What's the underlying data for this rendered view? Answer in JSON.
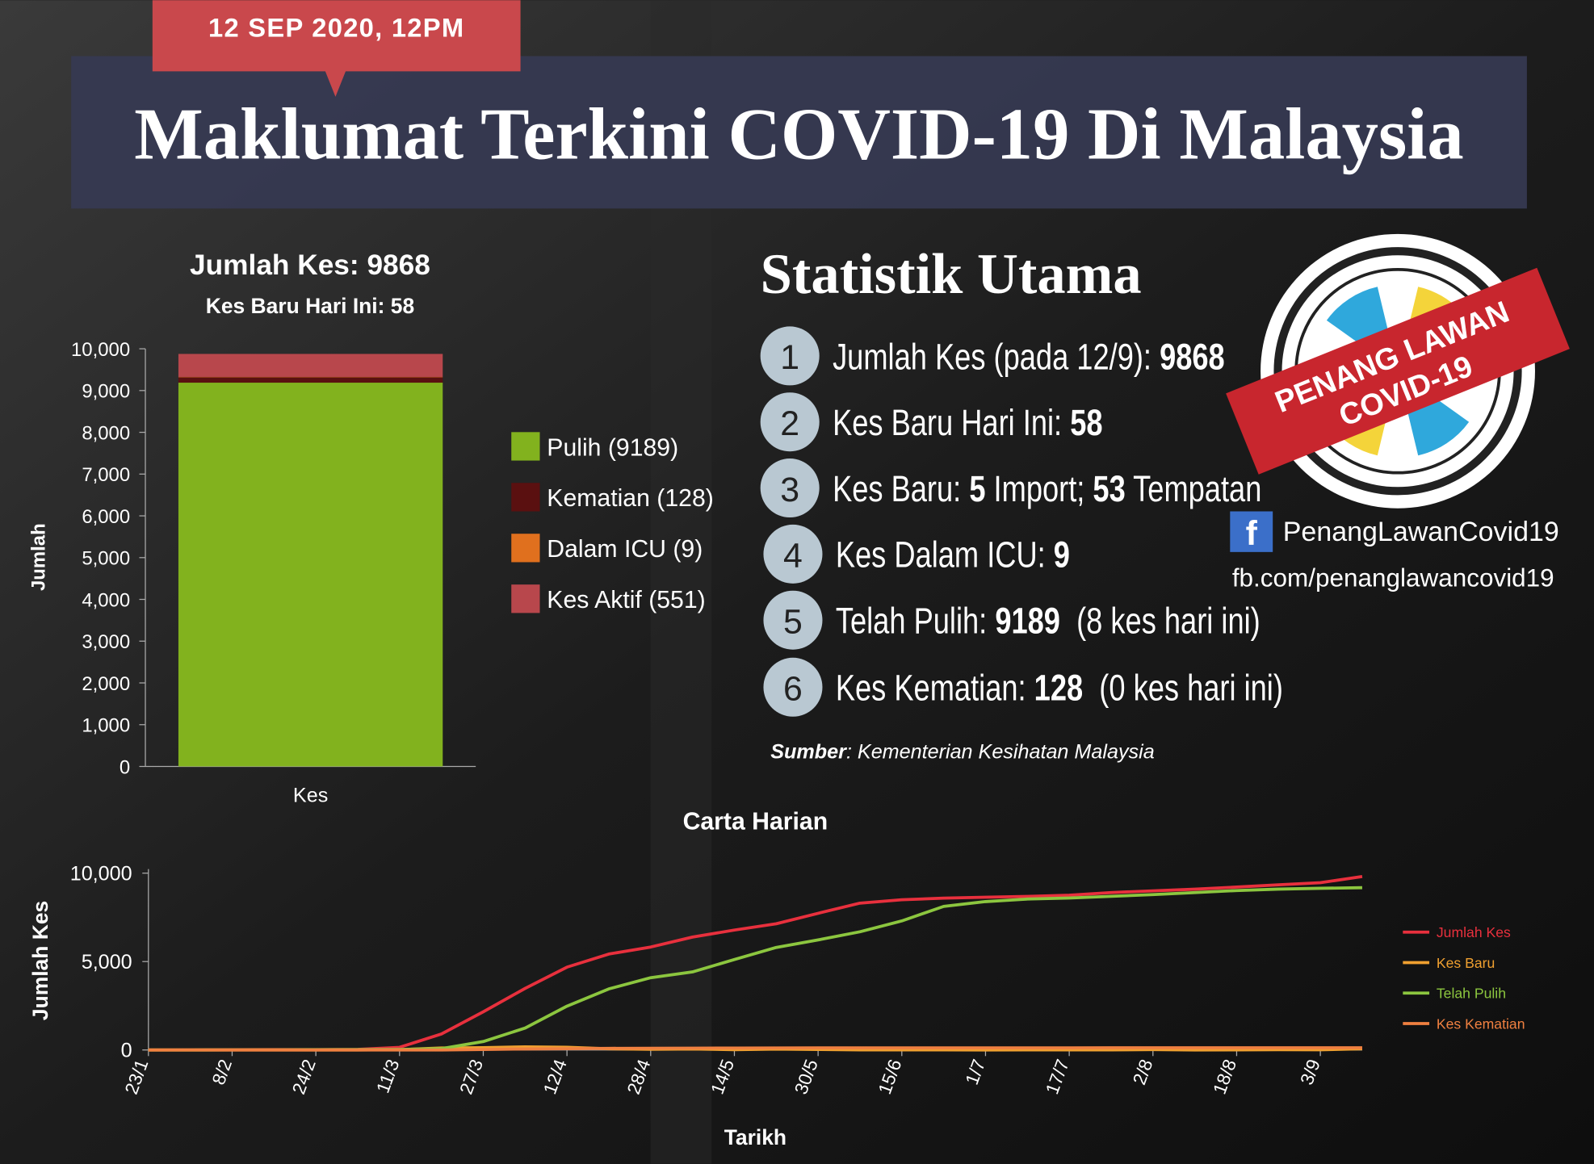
{
  "header": {
    "date": "12 SEP 2020, 12PM",
    "title": "Maklumat Terkini COVID-19 Di Malaysia"
  },
  "stats": {
    "title": "Statistik Utama",
    "items": [
      {
        "number": "1",
        "segments": [
          {
            "text": "Jumlah Kes (pada 12/9): ",
            "bold": false
          },
          {
            "text": "9868",
            "bold": true
          }
        ]
      },
      {
        "number": "2",
        "segments": [
          {
            "text": "Kes Baru Hari Ini: ",
            "bold": false
          },
          {
            "text": "58",
            "bold": true
          }
        ]
      },
      {
        "number": "3",
        "segments": [
          {
            "text": "Kes Baru: ",
            "bold": false
          },
          {
            "text": "5",
            "bold": true
          },
          {
            "text": " Import; ",
            "bold": false
          },
          {
            "text": "53",
            "bold": true
          },
          {
            "text": " Tempatan",
            "bold": false
          }
        ]
      },
      {
        "number": "4",
        "segments": [
          {
            "text": "Kes Dalam ICU: ",
            "bold": false
          },
          {
            "text": "9",
            "bold": true
          }
        ]
      },
      {
        "number": "5",
        "segments": [
          {
            "text": "Telah Pulih: ",
            "bold": false
          },
          {
            "text": "9189",
            "bold": true
          },
          {
            "text": "  (8 kes hari ini)",
            "bold": false
          }
        ]
      },
      {
        "number": "6",
        "segments": [
          {
            "text": "Kes Kematian: ",
            "bold": false
          },
          {
            "text": "128",
            "bold": true
          },
          {
            "text": "  (0 kes hari ini)",
            "bold": false
          }
        ]
      }
    ],
    "source_label": "Sumber",
    "source_text": ": Kementerian Kesihatan Malaysia"
  },
  "badge": {
    "line1": "PENANG LAWAN",
    "line2": "COVID-19"
  },
  "social": {
    "icon": "f",
    "name": "PenangLawanCovid19",
    "url": "fb.com/penanglawancovid19"
  },
  "chart_data": [
    {
      "type": "stacked-bar",
      "title": "Jumlah Kes: 9868",
      "subtitle": "Kes Baru Hari Ini: 58",
      "ylabel": "Jumlah",
      "categories": [
        "Kes"
      ],
      "series": [
        {
          "name": "Pulih (9189)",
          "color": "#82b21e",
          "values": [
            9189
          ]
        },
        {
          "name": "Kematian (128)",
          "color": "#5a1010",
          "values": [
            128
          ]
        },
        {
          "name": "Dalam ICU (9)",
          "color": "#e0701e",
          "values": [
            9
          ]
        },
        {
          "name": "Kes Aktif (551)",
          "color": "#b8474c",
          "values": [
            551
          ]
        }
      ],
      "ylim": [
        0,
        10000
      ],
      "yticks": [
        0,
        {
          "value": 1000,
          "label": "1,000"
        },
        {
          "value": 2000,
          "label": "2,000"
        },
        {
          "value": 3000,
          "label": "3,000"
        },
        {
          "value": 4000,
          "label": "4,000"
        },
        {
          "value": 5000,
          "label": "5,000"
        },
        {
          "value": 6000,
          "label": "6,000"
        },
        {
          "value": 7000,
          "label": "7,000"
        },
        {
          "value": 8000,
          "label": "8,000"
        },
        {
          "value": 9000,
          "label": "9,000"
        },
        {
          "value": 10000,
          "label": "10,000"
        }
      ]
    },
    {
      "type": "line",
      "title": "Carta Harian",
      "xlabel": "Tarikh",
      "ylabel": "Jumlah Kes",
      "categories": [
        "23/1",
        null,
        "8/2",
        null,
        "24/2",
        null,
        "11/3",
        null,
        "27/3",
        null,
        "12/4",
        null,
        "28/4",
        null,
        "14/5",
        null,
        "30/5",
        null,
        "15/6",
        null,
        "1/7",
        null,
        "17/7",
        null,
        "2/8",
        null,
        "18/8",
        null,
        "3/9",
        null
      ],
      "series": [
        {
          "name": "Jumlah Kes",
          "color": "#e8303d",
          "values": [
            0,
            8,
            17,
            22,
            22,
            36,
            149,
            900,
            2161,
            3483,
            4683,
            5425,
            5820,
            6383,
            6779,
            7137,
            7732,
            8303,
            8494,
            8587,
            8640,
            8683,
            8755,
            8904,
            9002,
            9094,
            9212,
            9340,
            9459,
            9810
          ]
        },
        {
          "name": "Kes Baru",
          "color": "#f0a030",
          "values": [
            0,
            0,
            1,
            0,
            0,
            0,
            20,
            117,
            130,
            179,
            153,
            71,
            40,
            55,
            16,
            50,
            30,
            7,
            8,
            4,
            2,
            7,
            7,
            5,
            25,
            2,
            5,
            20,
            12,
            70
          ]
        },
        {
          "name": "Telah Pulih",
          "color": "#8cc63f",
          "values": [
            0,
            0,
            3,
            7,
            18,
            22,
            26,
            75,
            479,
            1241,
            2478,
            3452,
            4087,
            4413,
            5113,
            5796,
            6222,
            6684,
            7300,
            8118,
            8388,
            8532,
            8590,
            8690,
            8790,
            8902,
            9015,
            9099,
            9146,
            9181
          ]
        },
        {
          "name": "Kes Kematian",
          "color": "#f08040",
          "values": [
            0,
            0,
            0,
            0,
            0,
            0,
            0,
            2,
            26,
            57,
            77,
            93,
            98,
            105,
            112,
            115,
            121,
            121,
            121,
            121,
            121,
            122,
            122,
            124,
            125,
            125,
            125,
            128,
            128,
            128
          ]
        }
      ],
      "ylim": [
        0,
        10000
      ],
      "yticks": [
        0,
        {
          "value": 5000,
          "label": "5,000"
        },
        {
          "value": 10000,
          "label": "10,000"
        }
      ]
    }
  ]
}
